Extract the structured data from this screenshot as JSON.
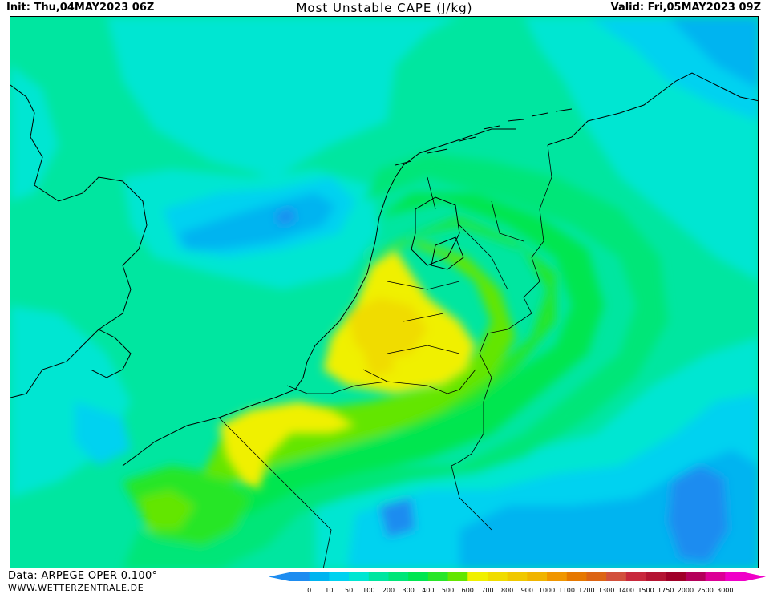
{
  "header": {
    "init": "Init: Thu,04MAY2023 06Z",
    "title": "Most Unstable CAPE (J/kg)",
    "valid": "Valid: Fri,05MAY2023 09Z"
  },
  "footer": {
    "data_source": "Data: ARPEGE OPER 0.100°",
    "website": "WWW.WETTERZENTRALE.DE"
  },
  "legend": {
    "unit": "J/kg",
    "ticks": [
      "0",
      "10",
      "50",
      "100",
      "200",
      "300",
      "400",
      "500",
      "600",
      "700",
      "800",
      "900",
      "1000",
      "1100",
      "1200",
      "1300",
      "1400",
      "1500",
      "1750",
      "2000",
      "2500",
      "3000"
    ],
    "colors": [
      "#1e8cf0",
      "#00b4f0",
      "#00d2f0",
      "#00e6d2",
      "#00e6a0",
      "#00e678",
      "#00e650",
      "#28e628",
      "#64e600",
      "#f0f000",
      "#f0dc00",
      "#f0c800",
      "#f0b400",
      "#f09600",
      "#e67800",
      "#dc6414",
      "#d2503c",
      "#c8283c",
      "#b41432",
      "#a00028",
      "#b4005a",
      "#dc0096",
      "#f000c8"
    ]
  },
  "map": {
    "region": "Netherlands / Belgium / North Sea",
    "field": "Most Unstable CAPE",
    "max_value_band": "700-800 J/kg"
  }
}
